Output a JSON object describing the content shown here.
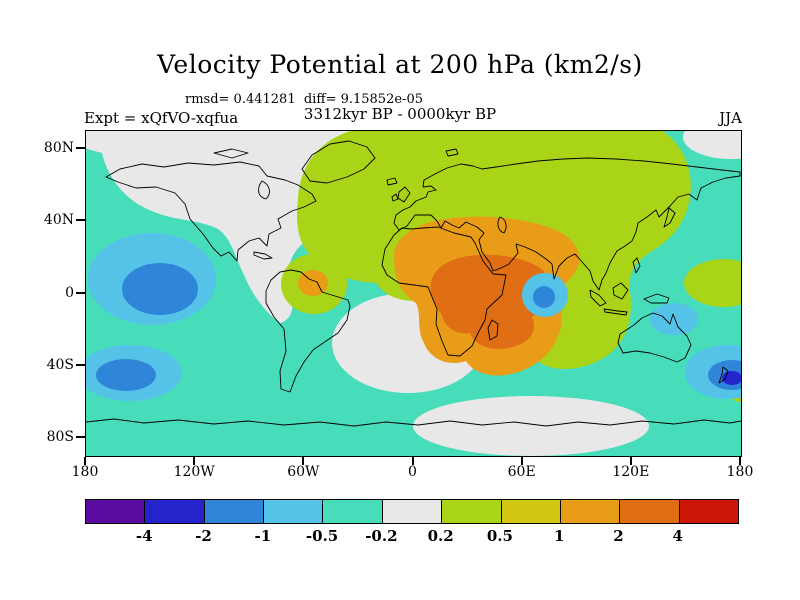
{
  "page": {
    "background": "#ffffff"
  },
  "header": {
    "title": "Velocity Potential at 200 hPa (km2/s)",
    "stats_line": "rmsd= 0.441281  diff= 9.15852e-05",
    "period_line": "3312kyr BP - 0000kyr BP",
    "experiment_label": "Expt = xQfVO-xqfua",
    "season_label": "JJA"
  },
  "axes": {
    "lat_labels": [
      "80N",
      "40N",
      "0",
      "40S",
      "80S"
    ],
    "lon_labels": [
      "180",
      "120W",
      "60W",
      "0",
      "60E",
      "120E",
      "180"
    ]
  },
  "colorbar": {
    "boundary_labels": [
      "-4",
      "-2",
      "-1",
      "-0.5",
      "-0.2",
      "0.2",
      "0.5",
      "1",
      "2",
      "4"
    ],
    "colors": [
      "#5a0a9e",
      "#2424cc",
      "#2f86d9",
      "#55c3e8",
      "#47ddbb",
      "#e8e8e8",
      "#aad418",
      "#d2c814",
      "#e89c18",
      "#e06e14",
      "#cc1606"
    ]
  },
  "chart_data": {
    "type": "heatmap",
    "subtype": "filled-contour-world-map",
    "title": "Velocity Potential at 200 hPa (km2/s)",
    "variable": "Velocity Potential",
    "level": "200 hPa",
    "units": "km2/s",
    "season": "JJA",
    "experiment": "Expt = xQfVO-xqfua",
    "difference": "3312kyr BP - 0000kyr BP",
    "rmsd": "0.441281",
    "diff": "9.15852e-05",
    "lon_range": [
      -180,
      180
    ],
    "lat_range": [
      -90,
      90
    ],
    "lat_ticks": [
      "80N",
      "40N",
      "0",
      "40S",
      "80S"
    ],
    "lon_ticks": [
      "180",
      "120W",
      "60W",
      "0",
      "60E",
      "120E",
      "180"
    ],
    "contour_levels": [
      -4,
      -2,
      -1,
      -0.5,
      -0.2,
      0.2,
      0.5,
      1,
      2,
      4
    ],
    "palette": [
      "#5a0a9e",
      "#2424cc",
      "#2f86d9",
      "#55c3e8",
      "#47ddbb",
      "#e8e8e8",
      "#aad418",
      "#d2c814",
      "#e89c18",
      "#e06e14",
      "#cc1606"
    ],
    "legend_position": "bottom",
    "grid": false,
    "features": [
      {
        "region": "central and northern Africa / Arabian Peninsula",
        "sign": "positive",
        "approx_value": "1 to 2 (deep orange core)"
      },
      {
        "region": "Eurasia and North Africa broad area",
        "sign": "positive",
        "approx_value": "0.2 to 1 (yellow-green)"
      },
      {
        "region": "northwest South America",
        "sign": "positive",
        "approx_value": "0.5 to 2 (small green/orange cell)"
      },
      {
        "region": "far west Pacific at east edge",
        "sign": "positive",
        "approx_value": "0.2 to 0.5"
      },
      {
        "region": "central tropical Pacific",
        "sign": "negative",
        "approx_value": "-2 to -1 (blue core)"
      },
      {
        "region": "southwest Pacific",
        "sign": "negative",
        "approx_value": "-2 to -1"
      },
      {
        "region": "near New Zealand",
        "sign": "negative",
        "approx_value": "-4 to -2 (dark blue spot)"
      },
      {
        "region": "Sri Lanka / southern India",
        "sign": "negative",
        "approx_value": "-2 to -1"
      },
      {
        "region": "North America and North Atlantic",
        "sign": "neutral",
        "approx_value": "-0.2 to 0.2 (gray)"
      },
      {
        "region": "South Atlantic and part of Southern Ocean",
        "sign": "neutral",
        "approx_value": "-0.2 to 0.2 (gray)"
      },
      {
        "region": "most remaining oceans",
        "sign": "negative",
        "approx_value": "-0.5 to -0.2 (teal)"
      }
    ]
  }
}
